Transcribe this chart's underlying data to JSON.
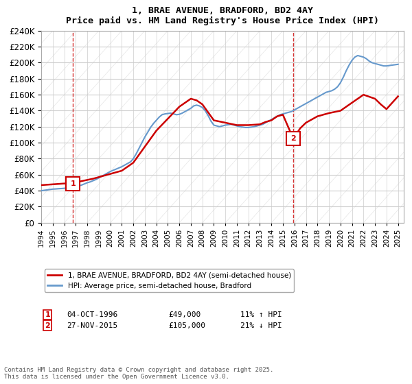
{
  "title": "1, BRAE AVENUE, BRADFORD, BD2 4AY",
  "subtitle": "Price paid vs. HM Land Registry's House Price Index (HPI)",
  "legend_line1": "1, BRAE AVENUE, BRADFORD, BD2 4AY (semi-detached house)",
  "legend_line2": "HPI: Average price, semi-detached house, Bradford",
  "marker1_label": "1",
  "marker1_date": "04-OCT-1996",
  "marker1_price": "£49,000",
  "marker1_hpi": "11% ↑ HPI",
  "marker1_year": 1996.75,
  "marker1_value": 49000,
  "marker2_label": "2",
  "marker2_date": "27-NOV-2015",
  "marker2_price": "£105,000",
  "marker2_hpi": "21% ↓ HPI",
  "marker2_year": 2015.9,
  "marker2_value": 105000,
  "footer": "Contains HM Land Registry data © Crown copyright and database right 2025.\nThis data is licensed under the Open Government Licence v3.0.",
  "line_color_red": "#cc0000",
  "line_color_blue": "#6699cc",
  "marker_box_color": "#cc0000",
  "ylim": [
    0,
    240000
  ],
  "yticks": [
    0,
    20000,
    40000,
    60000,
    80000,
    100000,
    120000,
    140000,
    160000,
    180000,
    200000,
    220000,
    240000
  ],
  "ytick_labels": [
    "£0",
    "£20K",
    "£40K",
    "£60K",
    "£80K",
    "£100K",
    "£120K",
    "£140K",
    "£160K",
    "£180K",
    "£200K",
    "£220K",
    "£240K"
  ],
  "hpi_years": [
    1994.0,
    1994.25,
    1994.5,
    1994.75,
    1995.0,
    1995.25,
    1995.5,
    1995.75,
    1996.0,
    1996.25,
    1996.5,
    1996.75,
    1997.0,
    1997.25,
    1997.5,
    1997.75,
    1998.0,
    1998.25,
    1998.5,
    1998.75,
    1999.0,
    1999.25,
    1999.5,
    1999.75,
    2000.0,
    2000.25,
    2000.5,
    2000.75,
    2001.0,
    2001.25,
    2001.5,
    2001.75,
    2002.0,
    2002.25,
    2002.5,
    2002.75,
    2003.0,
    2003.25,
    2003.5,
    2003.75,
    2004.0,
    2004.25,
    2004.5,
    2004.75,
    2005.0,
    2005.25,
    2005.5,
    2005.75,
    2006.0,
    2006.25,
    2006.5,
    2006.75,
    2007.0,
    2007.25,
    2007.5,
    2007.75,
    2008.0,
    2008.25,
    2008.5,
    2008.75,
    2009.0,
    2009.25,
    2009.5,
    2009.75,
    2010.0,
    2010.25,
    2010.5,
    2010.75,
    2011.0,
    2011.25,
    2011.5,
    2011.75,
    2012.0,
    2012.25,
    2012.5,
    2012.75,
    2013.0,
    2013.25,
    2013.5,
    2013.75,
    2014.0,
    2014.25,
    2014.5,
    2014.75,
    2015.0,
    2015.25,
    2015.5,
    2015.75,
    2016.0,
    2016.25,
    2016.5,
    2016.75,
    2017.0,
    2017.25,
    2017.5,
    2017.75,
    2018.0,
    2018.25,
    2018.5,
    2018.75,
    2019.0,
    2019.25,
    2019.5,
    2019.75,
    2020.0,
    2020.25,
    2020.5,
    2020.75,
    2021.0,
    2021.25,
    2021.5,
    2021.75,
    2022.0,
    2022.25,
    2022.5,
    2022.75,
    2023.0,
    2023.25,
    2023.5,
    2023.75,
    2024.0,
    2024.25,
    2024.5,
    2024.75,
    2025.0
  ],
  "hpi_values": [
    40000,
    40500,
    41000,
    41500,
    42000,
    42200,
    42500,
    42700,
    43000,
    43500,
    44000,
    44200,
    45000,
    46000,
    47000,
    48500,
    50000,
    51000,
    52500,
    54000,
    56000,
    58000,
    60000,
    62000,
    64000,
    65500,
    67000,
    68500,
    70000,
    72000,
    74000,
    76000,
    80000,
    86000,
    93000,
    100000,
    107000,
    113000,
    119000,
    124000,
    128000,
    132000,
    135000,
    136000,
    136500,
    137000,
    136000,
    135000,
    135500,
    137000,
    139000,
    141000,
    143000,
    146000,
    147000,
    146000,
    144000,
    140000,
    134000,
    127000,
    122000,
    121000,
    120000,
    121000,
    122000,
    122500,
    123000,
    122000,
    121000,
    120000,
    119500,
    119000,
    119000,
    119500,
    120000,
    121000,
    122000,
    123000,
    125000,
    127000,
    129000,
    131000,
    133000,
    135000,
    136000,
    137000,
    138000,
    139000,
    141000,
    143000,
    145000,
    147000,
    149000,
    151000,
    153000,
    155000,
    157000,
    159000,
    161000,
    163000,
    164000,
    165000,
    167000,
    170000,
    175000,
    182000,
    190000,
    197000,
    203000,
    207000,
    209000,
    208000,
    207000,
    205000,
    202000,
    200000,
    199000,
    198000,
    197000,
    196000,
    196000,
    196500,
    197000,
    197500,
    198000
  ],
  "red_years": [
    1994.0,
    1994.5,
    1995.0,
    1995.5,
    1996.0,
    1996.75,
    1997.5,
    1998.5,
    1999.0,
    1999.5,
    2000.0,
    2001.0,
    2002.0,
    2003.0,
    2004.0,
    2005.0,
    2006.0,
    2007.0,
    2007.5,
    2008.0,
    2009.0,
    2010.0,
    2011.0,
    2012.0,
    2013.0,
    2013.5,
    2014.0,
    2014.5,
    2015.0,
    2015.9,
    2016.5,
    2017.0,
    2018.0,
    2019.0,
    2020.0,
    2021.0,
    2022.0,
    2023.0,
    2023.5,
    2024.0,
    2024.5,
    2025.0
  ],
  "red_values": [
    47000,
    47500,
    48000,
    48500,
    49000,
    49000,
    52000,
    55000,
    57000,
    59000,
    61000,
    65000,
    75000,
    95000,
    115000,
    130000,
    145000,
    155000,
    153000,
    148000,
    128000,
    125000,
    122000,
    122000,
    123000,
    126000,
    128000,
    133000,
    135000,
    105000,
    118000,
    125000,
    133000,
    137000,
    140000,
    150000,
    160000,
    155000,
    148000,
    142000,
    150000,
    158000
  ]
}
